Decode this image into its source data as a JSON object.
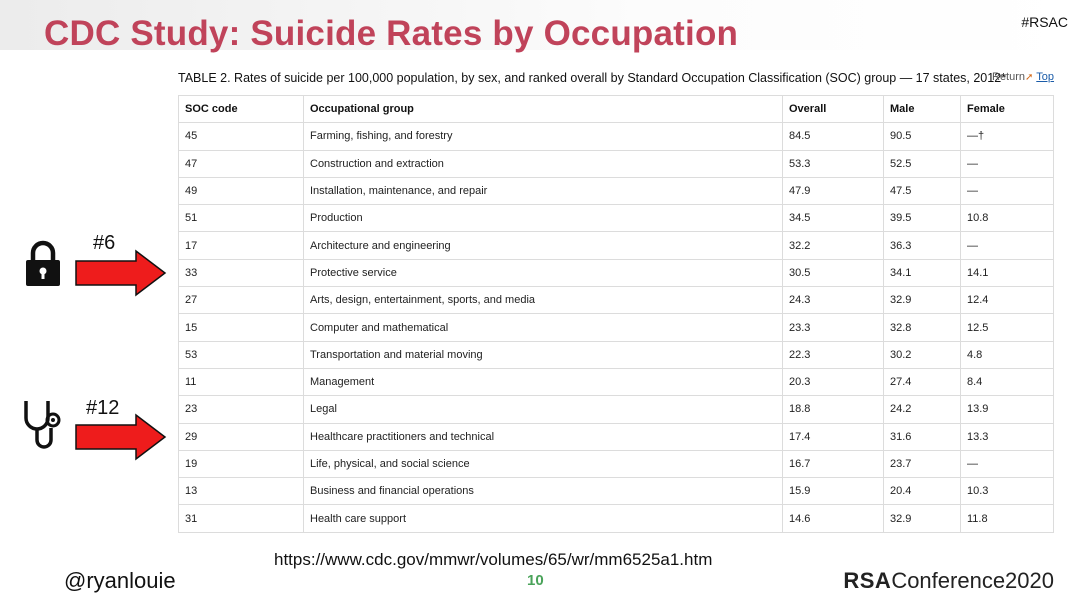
{
  "slide": {
    "title": "CDC Study: Suicide Rates by Occupation",
    "hashtag": "#RSAC",
    "url": "https://www.cdc.gov/mmwr/volumes/65/wr/mm6525a1.htm",
    "handle": "@ryanlouie",
    "page_number": "10",
    "brand_bold": "RSA",
    "brand_rest": "Conference2020"
  },
  "table": {
    "caption": "TABLE 2. Rates of suicide per 100,000 population, by sex, and ranked overall by Standard Occupation Classification (SOC) group — 17 states, 2012*",
    "return_label": "Return",
    "top_label": "Top",
    "headers": [
      "SOC code",
      "Occupational group",
      "Overall",
      "Male",
      "Female"
    ],
    "rows": [
      [
        "45",
        "Farming, fishing, and forestry",
        "84.5",
        "90.5",
        "—†"
      ],
      [
        "47",
        "Construction and extraction",
        "53.3",
        "52.5",
        "—"
      ],
      [
        "49",
        "Installation, maintenance, and repair",
        "47.9",
        "47.5",
        "—"
      ],
      [
        "51",
        "Production",
        "34.5",
        "39.5",
        "10.8"
      ],
      [
        "17",
        "Architecture and engineering",
        "32.2",
        "36.3",
        "—"
      ],
      [
        "33",
        "Protective service",
        "30.5",
        "34.1",
        "14.1"
      ],
      [
        "27",
        "Arts, design, entertainment, sports, and media",
        "24.3",
        "32.9",
        "12.4"
      ],
      [
        "15",
        "Computer and mathematical",
        "23.3",
        "32.8",
        "12.5"
      ],
      [
        "53",
        "Transportation and material moving",
        "22.3",
        "30.2",
        "4.8"
      ],
      [
        "11",
        "Management",
        "20.3",
        "27.4",
        "8.4"
      ],
      [
        "23",
        "Legal",
        "18.8",
        "24.2",
        "13.9"
      ],
      [
        "29",
        "Healthcare practitioners and technical",
        "17.4",
        "31.6",
        "13.3"
      ],
      [
        "19",
        "Life, physical, and social science",
        "16.7",
        "23.7",
        "—"
      ],
      [
        "13",
        "Business and financial operations",
        "15.9",
        "20.4",
        "10.3"
      ],
      [
        "31",
        "Health care support",
        "14.6",
        "32.9",
        "11.8"
      ]
    ]
  },
  "callouts": [
    {
      "label": "#6",
      "icon": "lock-icon",
      "arrow_color": "#ee1c1c"
    },
    {
      "label": "#12",
      "icon": "stethoscope-icon",
      "arrow_color": "#ee1c1c"
    }
  ],
  "colors": {
    "title": "#c0435a",
    "page_number": "#4aa35a",
    "link": "#1a5ba8"
  }
}
